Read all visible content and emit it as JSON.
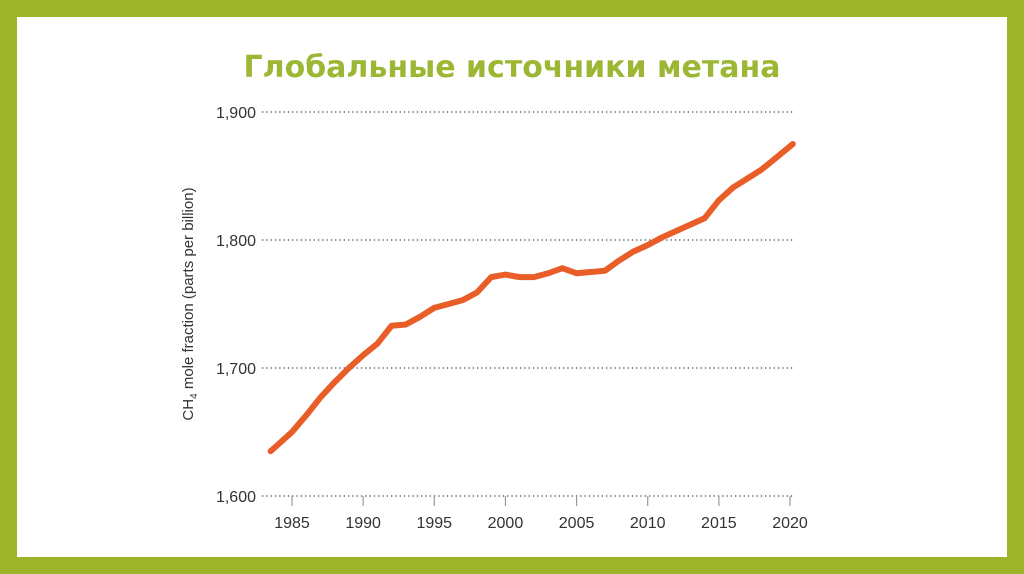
{
  "colors": {
    "border": "#9db42b",
    "title": "#9cb733",
    "line": "#e95e28",
    "text": "#333333",
    "grid": "#444444"
  },
  "chart_data": {
    "type": "line",
    "title": "Глобальные источники метана",
    "xlabel": "",
    "ylabel": "CH4 mole fraction (parts per billion)",
    "ylabel_parts": {
      "pre": "CH",
      "sub": "4",
      "post": " mole fraction (parts per billion)"
    },
    "xlim": [
      1983,
      2021
    ],
    "ylim": [
      1600,
      1900
    ],
    "xticks": [
      1985,
      1990,
      1995,
      2000,
      2005,
      2010,
      2015,
      2020
    ],
    "xtick_labels": [
      "1985",
      "1990",
      "1995",
      "2000",
      "2005",
      "2010",
      "2015",
      "2020"
    ],
    "yticks": [
      1600,
      1700,
      1800,
      1900
    ],
    "ytick_labels": [
      "1,600",
      "1,700",
      "1,800",
      "1,900"
    ],
    "grid": "horizontal dotted",
    "series": [
      {
        "x": [
          1983.5,
          1984,
          1985,
          1986,
          1987,
          1988,
          1989,
          1990,
          1991,
          1992,
          1993,
          1994,
          1995,
          1996,
          1997,
          1998,
          1999,
          2000,
          2001,
          2002,
          2003,
          2004,
          2005,
          2006,
          2007,
          2008,
          2009,
          2010,
          2011,
          2012,
          2013,
          2014,
          2015,
          2016,
          2017,
          2018,
          2019,
          2020.2
        ],
        "y": [
          1635,
          1640,
          1650,
          1663,
          1677,
          1689,
          1700,
          1710,
          1719,
          1733,
          1734,
          1740,
          1747,
          1750,
          1753,
          1759,
          1771,
          1773,
          1771,
          1771,
          1774,
          1778,
          1774,
          1775,
          1776,
          1784,
          1791,
          1796,
          1802,
          1807,
          1812,
          1817,
          1831,
          1841,
          1848,
          1855,
          1864,
          1875
        ]
      }
    ]
  }
}
